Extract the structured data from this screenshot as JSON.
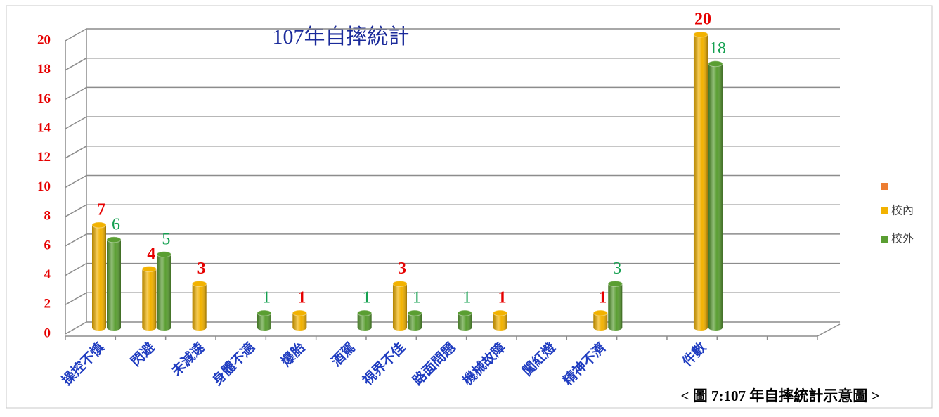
{
  "chart_data": {
    "type": "bar",
    "title": "107年自摔統計",
    "categories": [
      "操控不慎",
      "閃避",
      "未減速",
      "身體不適",
      "爆胎",
      "酒駕",
      "視界不佳",
      "路面問題",
      "機械故障",
      "闖紅燈",
      "精神不濟",
      null,
      "件數",
      null,
      null
    ],
    "series": [
      {
        "name": "校內",
        "color": "#f2b200",
        "label_color": "#e60000",
        "values": [
          7,
          4,
          3,
          null,
          1,
          null,
          3,
          null,
          1,
          null,
          1,
          null,
          20,
          null,
          null
        ]
      },
      {
        "name": "校外",
        "color": "#5a9e32",
        "label_color": "#14a050",
        "values": [
          6,
          5,
          null,
          1,
          null,
          1,
          1,
          1,
          null,
          null,
          3,
          null,
          18,
          null,
          null
        ]
      }
    ],
    "ylim": [
      0,
      20
    ],
    "yticks": [
      0,
      2,
      4,
      6,
      8,
      10,
      12,
      14,
      16,
      18,
      20
    ],
    "grid": true,
    "legend": "right",
    "caption": "< 圖 7:107 年自摔統計示意圖 >"
  }
}
